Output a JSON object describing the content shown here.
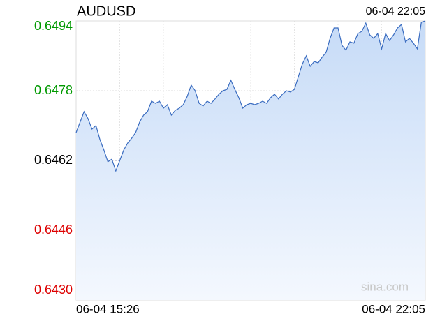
{
  "chart_data": {
    "type": "line",
    "title": "AUDUSD",
    "timestamp": "06-04 22:05",
    "watermark": "sina.com",
    "categories": [
      "06-04 15:26",
      null,
      null,
      null,
      null,
      null,
      null,
      null,
      null,
      null,
      null,
      null,
      null,
      null,
      null,
      null,
      null,
      null,
      null,
      null,
      null,
      null,
      null,
      null,
      null,
      null,
      null,
      null,
      null,
      null,
      null,
      null,
      null,
      null,
      null,
      null,
      null,
      null,
      null,
      null,
      null,
      null,
      null,
      null,
      null,
      null,
      null,
      null,
      null,
      null,
      null,
      null,
      null,
      null,
      null,
      null,
      null,
      null,
      null,
      null,
      null,
      null,
      null,
      null,
      null,
      null,
      null,
      null,
      null,
      null,
      null,
      null,
      null,
      null,
      null,
      null,
      null,
      null,
      null,
      null,
      null,
      null,
      null,
      null,
      null,
      null,
      null,
      null,
      "06-04 22:05"
    ],
    "series": [
      {
        "name": "AUDUSD",
        "color": "#3a6cc0",
        "values": [
          0.64684,
          0.64708,
          0.64732,
          0.64716,
          0.64692,
          0.647,
          0.64668,
          0.64644,
          0.64617,
          0.64623,
          0.64596,
          0.6462,
          0.64644,
          0.6466,
          0.64671,
          0.64684,
          0.64708,
          0.64724,
          0.64732,
          0.64756,
          0.64751,
          0.64756,
          0.6474,
          0.64748,
          0.64724,
          0.64735,
          0.6474,
          0.64748,
          0.64767,
          0.64793,
          0.6478,
          0.64751,
          0.64745,
          0.64756,
          0.64751,
          0.64761,
          0.64772,
          0.6478,
          0.64783,
          0.64804,
          0.64783,
          0.64764,
          0.6474,
          0.64748,
          0.64751,
          0.64748,
          0.64751,
          0.64756,
          0.64751,
          0.64764,
          0.64772,
          0.64761,
          0.64772,
          0.6478,
          0.64777,
          0.64783,
          0.64812,
          0.64841,
          0.6486,
          0.64836,
          0.64847,
          0.64844,
          0.64857,
          0.64868,
          0.649,
          0.64924,
          0.64924,
          0.64884,
          0.64873,
          0.64892,
          0.64889,
          0.64911,
          0.64916,
          0.64935,
          0.64908,
          0.649,
          0.64911,
          0.64876,
          0.64911,
          0.64895,
          0.64908,
          0.64924,
          0.64932,
          0.64892,
          0.649,
          0.64889,
          0.64876,
          0.64937,
          0.6494
        ]
      }
    ],
    "ylim": [
      0.643,
      0.6494
    ],
    "yticks": [
      {
        "value": 0.643,
        "label": "0.6430"
      },
      0.6446,
      0.6462,
      0.6478,
      0.6494
    ],
    "reference_line": 0.6462,
    "up_color": "#009900",
    "down_color": "#dd0000",
    "grid": true
  }
}
